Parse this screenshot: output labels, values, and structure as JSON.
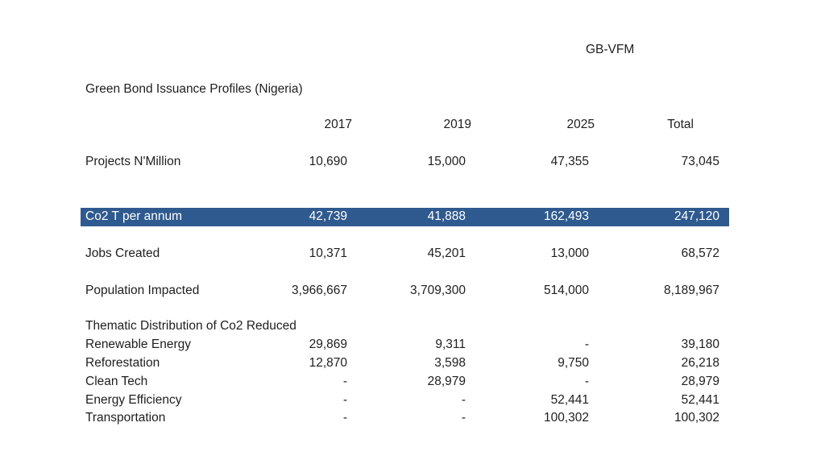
{
  "header": {
    "org": "GB-VFM",
    "title": "Green Bond Issuance Profiles (Nigeria)"
  },
  "columns": [
    "2017",
    "2019",
    "2025",
    "Total"
  ],
  "rows": [
    {
      "label": "Projects N'Million",
      "values": [
        "10,690",
        "15,000",
        "47,355",
        "73,045"
      ]
    },
    {
      "label": "Co2 T per annum",
      "values": [
        "42,739",
        "41,888",
        "162,493",
        "247,120"
      ],
      "highlighted": true
    },
    {
      "label": "Jobs Created",
      "values": [
        "10,371",
        "45,201",
        "13,000",
        "68,572"
      ]
    },
    {
      "label": "Population Impacted",
      "values": [
        "3,966,667",
        "3,709,300",
        "514,000",
        "8,189,967"
      ]
    }
  ],
  "thematic": {
    "title": "Thematic Distribution of Co2 Reduced",
    "rows": [
      {
        "label": "Renewable Energy",
        "values": [
          "29,869",
          "9,311",
          "-",
          "39,180"
        ]
      },
      {
        "label": "Reforestation",
        "values": [
          "12,870",
          "3,598",
          "9,750",
          "26,218"
        ]
      },
      {
        "label": "Clean Tech",
        "values": [
          "-",
          "28,979",
          "-",
          "28,979"
        ]
      },
      {
        "label": "Energy Efficiency",
        "values": [
          "-",
          "-",
          "52,441",
          "52,441"
        ]
      },
      {
        "label": "Transportation",
        "values": [
          "-",
          "-",
          "100,302",
          "100,302"
        ]
      }
    ]
  },
  "colors": {
    "highlight": "#2f5a8f"
  }
}
